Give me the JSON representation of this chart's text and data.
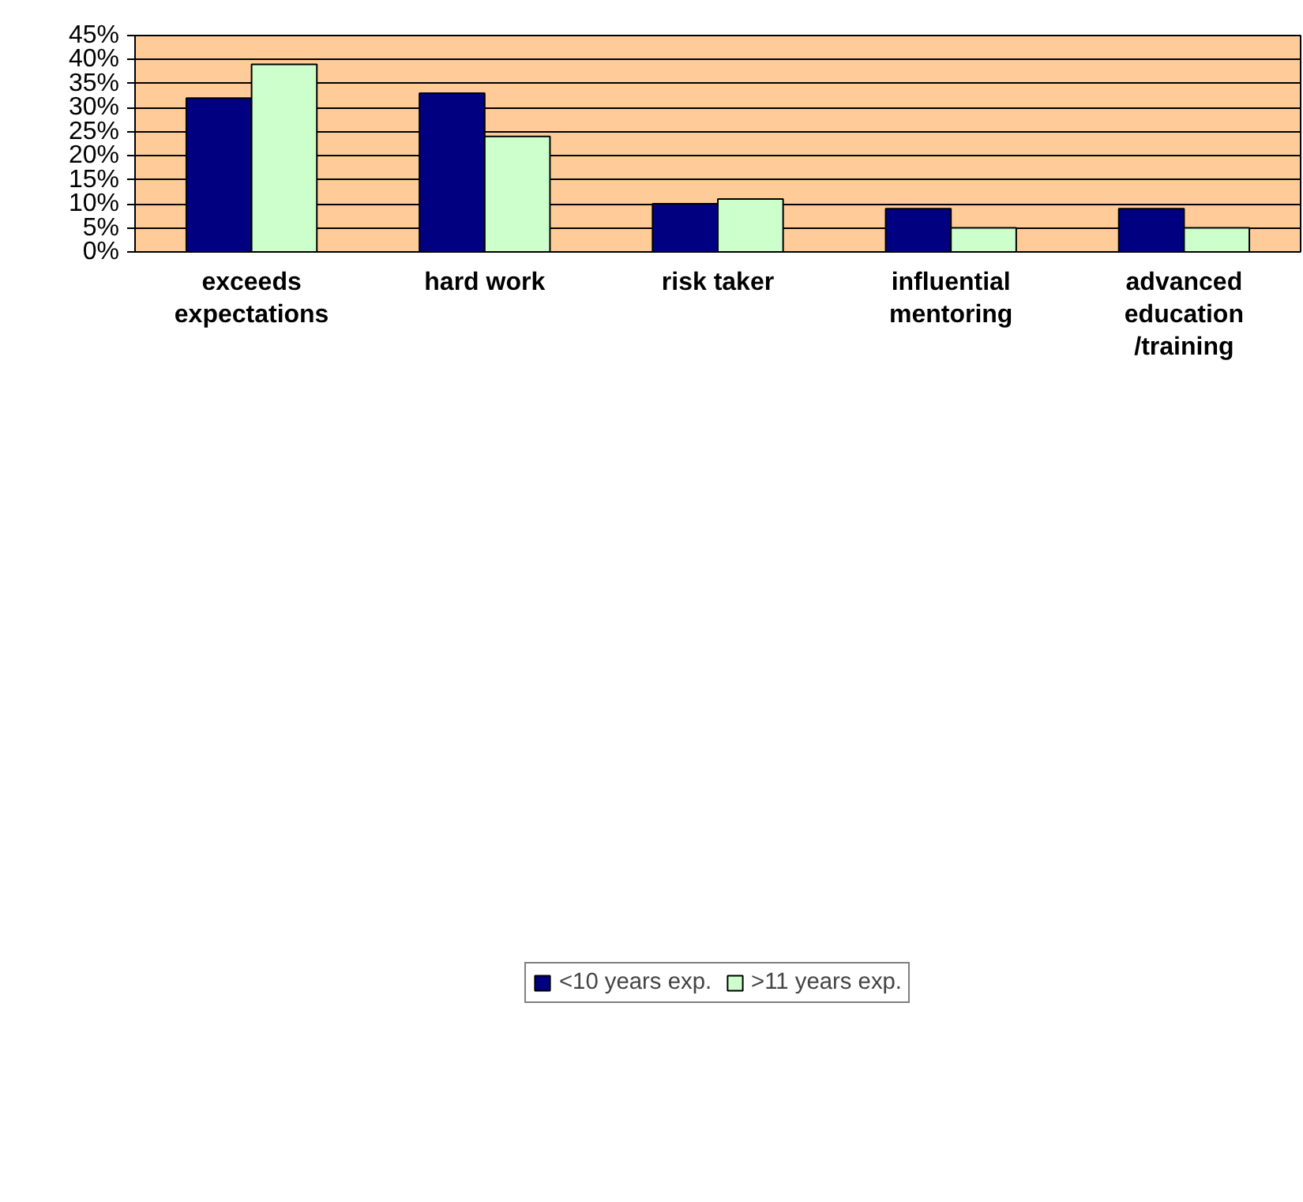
{
  "chart_data": {
    "type": "bar",
    "categories": [
      "exceeds\nexpectations",
      "hard work",
      "risk taker",
      "influential\nmentoring",
      "advanced\neducation\n/training"
    ],
    "series": [
      {
        "name": "<10 years exp.",
        "color": "#000080",
        "values": [
          32,
          33,
          10,
          9,
          9
        ]
      },
      {
        "name": ">11 years exp.",
        "color": "#ccffcc",
        "values": [
          39,
          24,
          11,
          5,
          5
        ]
      }
    ],
    "ylim": [
      0,
      45
    ],
    "yticks": [
      {
        "value": 0,
        "label": "0%"
      },
      {
        "value": 5,
        "label": "5%"
      },
      {
        "value": 10,
        "label": "10%"
      },
      {
        "value": 15,
        "label": "15%"
      },
      {
        "value": 20,
        "label": "20%"
      },
      {
        "value": 25,
        "label": "25%"
      },
      {
        "value": 30,
        "label": "30%"
      },
      {
        "value": 35,
        "label": "35%"
      },
      {
        "value": 40,
        "label": "40%"
      },
      {
        "value": 45,
        "label": "45%"
      }
    ],
    "grid": "y",
    "legend": "bottom"
  }
}
